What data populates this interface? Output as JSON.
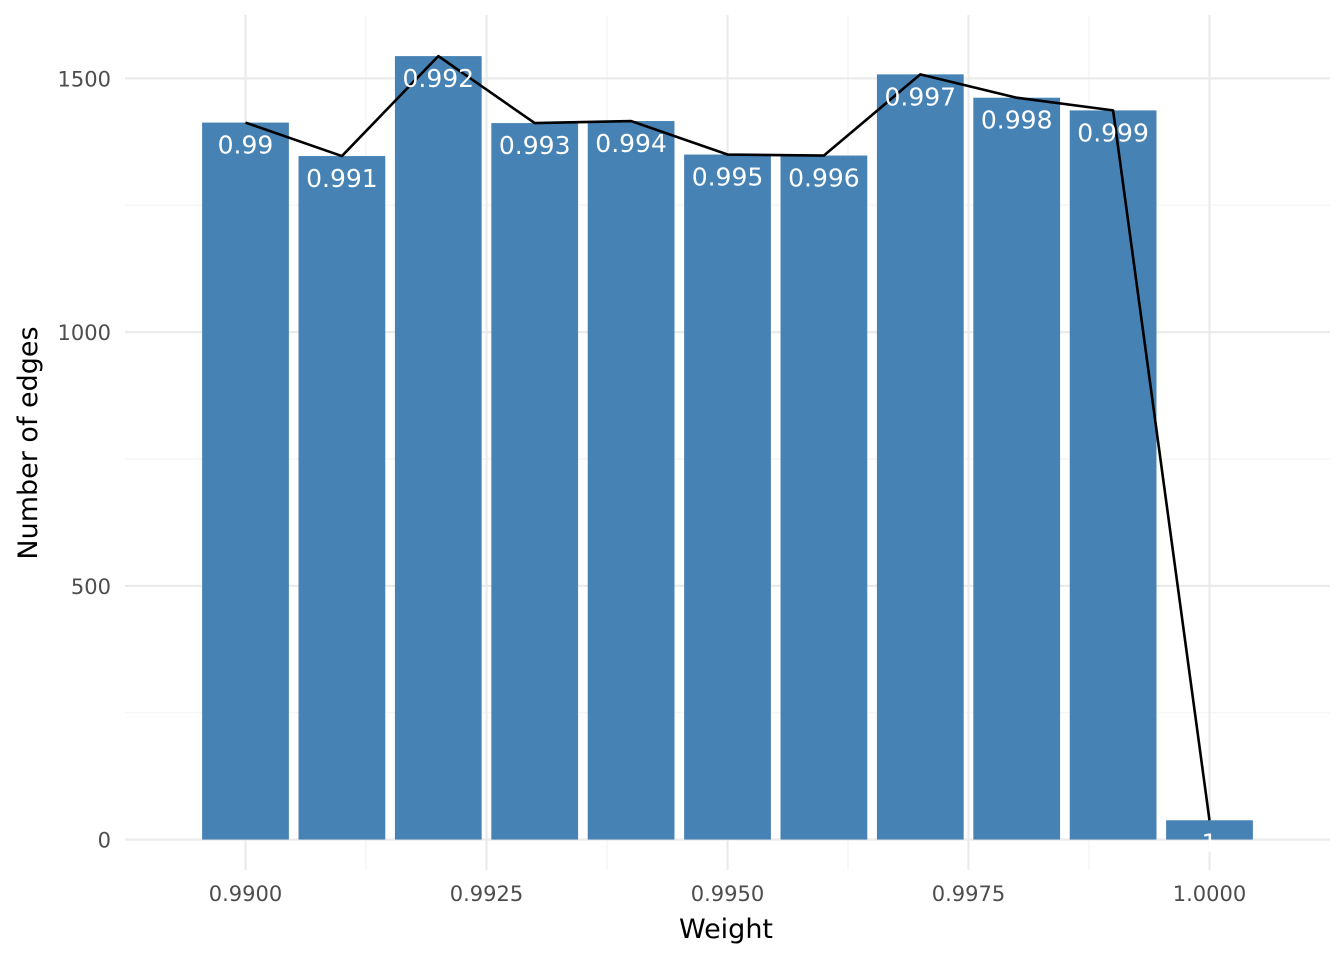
{
  "chart_data": {
    "type": "bar",
    "x": [
      0.99,
      0.991,
      0.992,
      0.993,
      0.994,
      0.995,
      0.996,
      0.997,
      0.998,
      0.999,
      1.0
    ],
    "values": [
      1413,
      1347,
      1544,
      1412,
      1416,
      1350,
      1348,
      1508,
      1462,
      1437,
      38
    ],
    "bar_labels": [
      "0.99",
      "0.991",
      "0.992",
      "0.993",
      "0.994",
      "0.995",
      "0.996",
      "0.997",
      "0.998",
      "0.999",
      "1"
    ],
    "line_values": [
      1413,
      1347,
      1544,
      1412,
      1416,
      1350,
      1348,
      1508,
      1462,
      1437,
      38
    ],
    "xlabel": "Weight",
    "ylabel": "Number of edges",
    "xticks": [
      "0.9900",
      "0.9925",
      "0.9950",
      "0.9975",
      "1.0000"
    ],
    "xtick_values": [
      0.99,
      0.9925,
      0.995,
      0.9975,
      1.0
    ],
    "yticks": [
      "0",
      "500",
      "1000",
      "1500"
    ],
    "ytick_values": [
      0,
      500,
      1000,
      1500
    ],
    "xlim": [
      0.98875,
      1.00125
    ],
    "ylim": [
      -60,
      1625
    ],
    "bar_width": 0.0009,
    "grid": true,
    "legend": "none",
    "colors": {
      "bar": "#4682b4",
      "line": "#000000",
      "bar_label": "#ffffff"
    }
  }
}
